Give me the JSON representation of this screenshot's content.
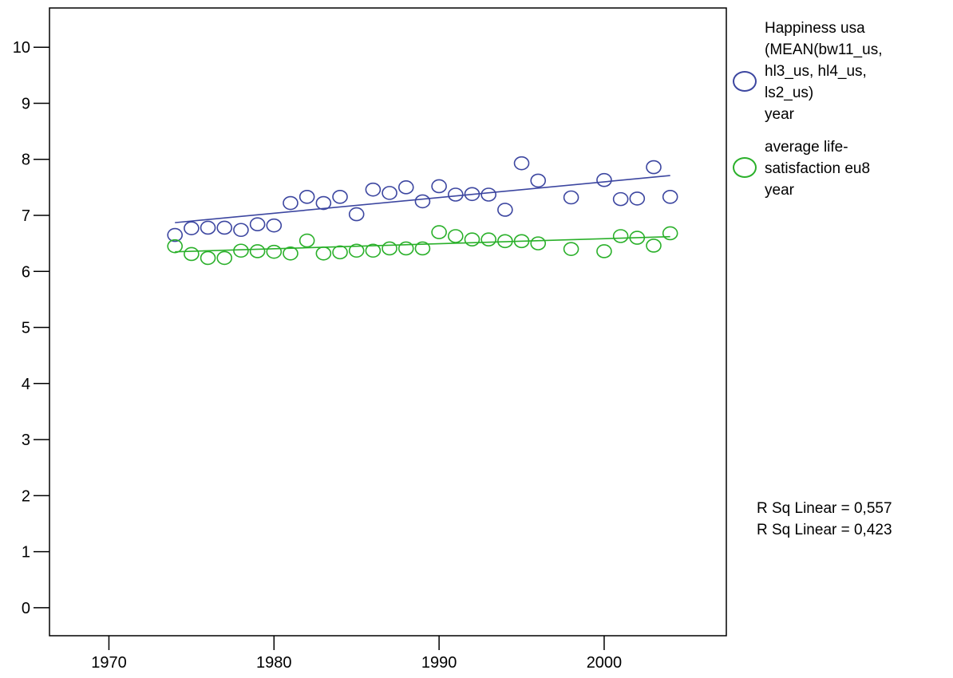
{
  "chart_data": {
    "type": "scatter",
    "title": "",
    "xlabel": "",
    "ylabel": "",
    "xlim": [
      1966.4,
      2007.4
    ],
    "ylim": [
      -0.5,
      10.7
    ],
    "x_ticks": [
      1970,
      1980,
      1990,
      2000
    ],
    "y_ticks": [
      0,
      1,
      2,
      3,
      4,
      5,
      6,
      7,
      8,
      9,
      10
    ],
    "grid": false,
    "legend_position": "right",
    "series": [
      {
        "name": "Happiness usa (MEAN(bw11_us, hl3_us, hl4_us, ls2_us) year",
        "color": "#3c46a0",
        "points": [
          [
            1974,
            6.65
          ],
          [
            1975,
            6.77
          ],
          [
            1976,
            6.78
          ],
          [
            1977,
            6.78
          ],
          [
            1978,
            6.74
          ],
          [
            1979,
            6.84
          ],
          [
            1980,
            6.82
          ],
          [
            1981,
            7.22
          ],
          [
            1982,
            7.33
          ],
          [
            1983,
            7.22
          ],
          [
            1984,
            7.33
          ],
          [
            1985,
            7.02
          ],
          [
            1986,
            7.46
          ],
          [
            1987,
            7.4
          ],
          [
            1988,
            7.5
          ],
          [
            1989,
            7.25
          ],
          [
            1990,
            7.52
          ],
          [
            1991,
            7.37
          ],
          [
            1992,
            7.38
          ],
          [
            1993,
            7.37
          ],
          [
            1994,
            7.1
          ],
          [
            1995,
            7.93
          ],
          [
            1996,
            7.62
          ],
          [
            1998,
            7.32
          ],
          [
            2000,
            7.63
          ],
          [
            2001,
            7.29
          ],
          [
            2002,
            7.3
          ],
          [
            2003,
            7.86
          ],
          [
            2004,
            7.33
          ]
        ],
        "fit": {
          "x": [
            1974,
            2004
          ],
          "y": [
            6.87,
            7.71
          ]
        }
      },
      {
        "name": "average life-satisfaction eu8 year",
        "color": "#2ab02a",
        "points": [
          [
            1974,
            6.45
          ],
          [
            1975,
            6.31
          ],
          [
            1976,
            6.24
          ],
          [
            1977,
            6.24
          ],
          [
            1978,
            6.37
          ],
          [
            1979,
            6.36
          ],
          [
            1980,
            6.35
          ],
          [
            1981,
            6.32
          ],
          [
            1982,
            6.55
          ],
          [
            1983,
            6.32
          ],
          [
            1984,
            6.34
          ],
          [
            1985,
            6.37
          ],
          [
            1986,
            6.37
          ],
          [
            1987,
            6.41
          ],
          [
            1988,
            6.41
          ],
          [
            1989,
            6.41
          ],
          [
            1990,
            6.7
          ],
          [
            1991,
            6.63
          ],
          [
            1992,
            6.57
          ],
          [
            1993,
            6.57
          ],
          [
            1994,
            6.54
          ],
          [
            1995,
            6.54
          ],
          [
            1996,
            6.5
          ],
          [
            1998,
            6.4
          ],
          [
            2000,
            6.36
          ],
          [
            2001,
            6.63
          ],
          [
            2002,
            6.6
          ],
          [
            2003,
            6.46
          ],
          [
            2004,
            6.68
          ]
        ],
        "fit": {
          "x": [
            1974,
            2004
          ],
          "y": [
            6.35,
            6.62
          ]
        }
      }
    ]
  },
  "legend": {
    "items": [
      {
        "label": "Happiness usa\n(MEAN(bw11_us,\nhl3_us, hl4_us,\nls2_us)\nyear",
        "color": "#3c46a0"
      },
      {
        "label": "average life-\nsatisfaction eu8\nyear",
        "color": "#2ab02a"
      }
    ]
  },
  "rsq": {
    "line1": "R Sq Linear = 0,557",
    "line2": "R Sq Linear = 0,423"
  }
}
